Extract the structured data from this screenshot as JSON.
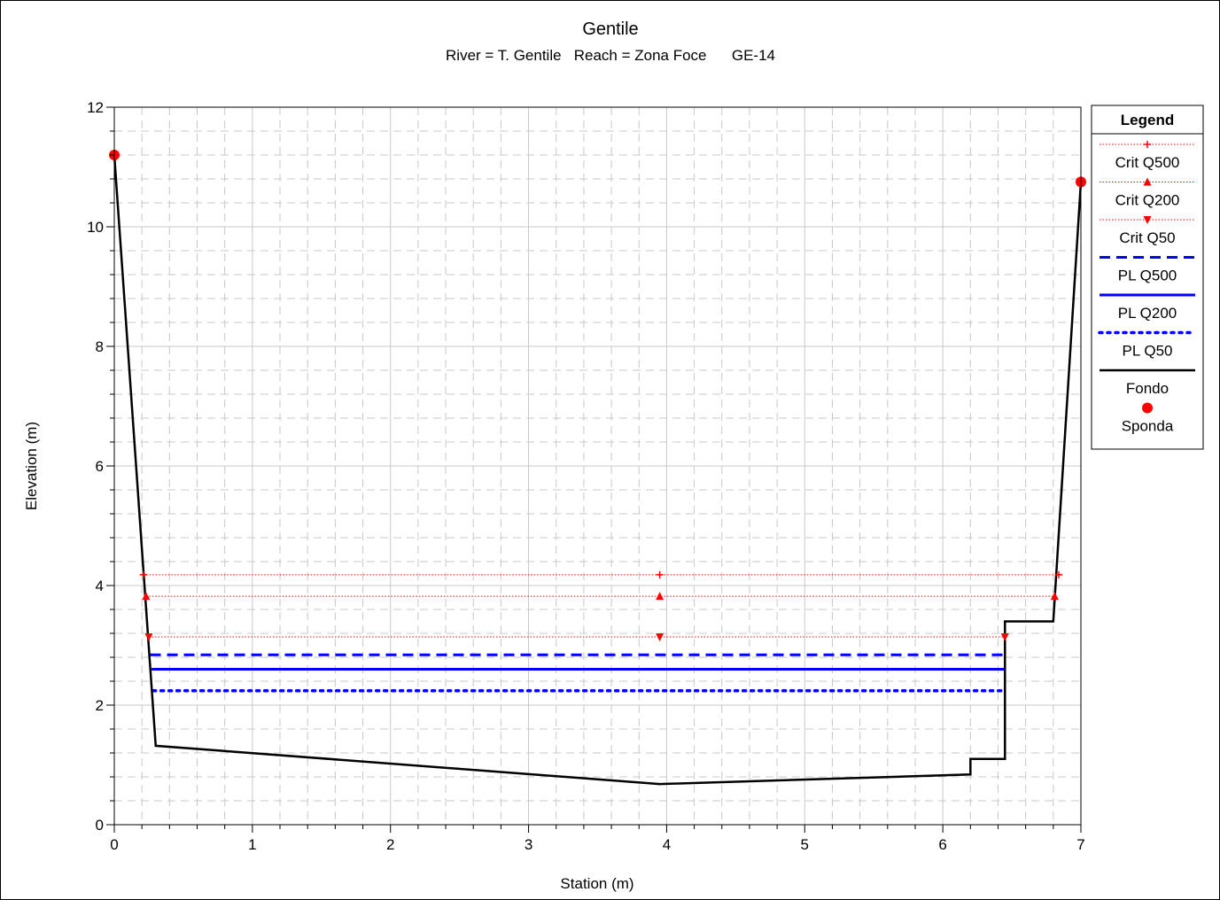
{
  "chart_data": {
    "type": "line",
    "title": "Gentile",
    "subtitle": "River = T. Gentile   Reach = Zona Foce      GE-14",
    "xlabel": "Station (m)",
    "ylabel": "Elevation (m)",
    "xlim": [
      0,
      7
    ],
    "ylim": [
      0,
      12
    ],
    "x_ticks": [
      "0",
      "1",
      "2",
      "3",
      "4",
      "5",
      "6",
      "7"
    ],
    "y_ticks": [
      "0",
      "2",
      "4",
      "6",
      "8",
      "10",
      "12"
    ],
    "grid": true,
    "legend_position": "right",
    "legend_title": "Legend",
    "ground": {
      "name": "Fondo",
      "color": "#000000",
      "points": [
        [
          0.0,
          11.2
        ],
        [
          0.3,
          1.32
        ],
        [
          3.95,
          0.68
        ],
        [
          6.2,
          0.84
        ],
        [
          6.2,
          1.1
        ],
        [
          6.45,
          1.1
        ],
        [
          6.45,
          3.4
        ],
        [
          6.8,
          3.4
        ],
        [
          7.0,
          10.75
        ]
      ]
    },
    "banks": {
      "name": "Sponda",
      "color": "#ff0000",
      "points": [
        [
          0.0,
          11.2
        ],
        [
          7.0,
          10.75
        ]
      ]
    },
    "series": [
      {
        "name": "Crit Q500",
        "y": 4.18,
        "x_start": 0.21,
        "x_end": 6.84,
        "markers": [
          0.21,
          3.95,
          6.84
        ],
        "marker": "plus",
        "color": "#ff0000",
        "style": "dotted-thin"
      },
      {
        "name": "Crit Q200",
        "y": 3.82,
        "x_start": 0.23,
        "x_end": 6.81,
        "markers": [
          0.23,
          3.95,
          6.81
        ],
        "marker": "triangle-up",
        "color": "#ff0000",
        "style": "dotted-thin"
      },
      {
        "name": "Crit Q50",
        "y": 3.14,
        "x_start": 0.25,
        "x_end": 6.45,
        "markers": [
          0.25,
          3.95,
          6.45
        ],
        "marker": "triangle-down",
        "color": "#ff0000",
        "style": "dotted-thin"
      },
      {
        "name": "PL Q500",
        "y": 2.84,
        "x_start": 0.26,
        "x_end": 6.45,
        "color": "#0000ff",
        "style": "dashed"
      },
      {
        "name": "PL Q200",
        "y": 2.6,
        "x_start": 0.27,
        "x_end": 6.45,
        "color": "#0000ff",
        "style": "solid"
      },
      {
        "name": "PL Q50",
        "y": 2.24,
        "x_start": 0.28,
        "x_end": 6.45,
        "color": "#0000ff",
        "style": "dotted-thick"
      }
    ]
  }
}
